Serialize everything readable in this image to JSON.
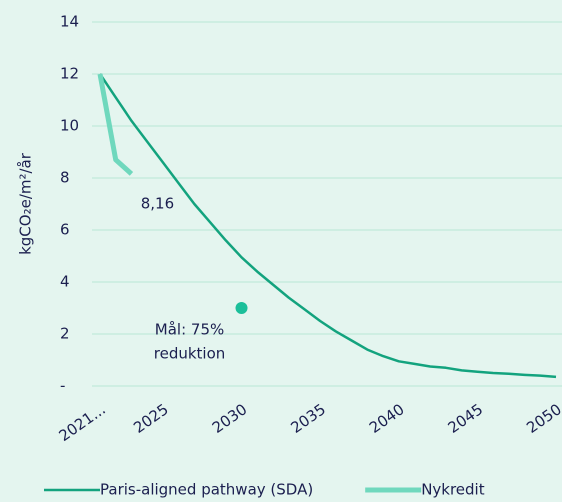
{
  "chart_data": {
    "type": "line",
    "ylabel": "kgCO₂e/m²/år",
    "x": [
      2021,
      2022,
      2023,
      2024,
      2025,
      2026,
      2027,
      2028,
      2029,
      2030,
      2031,
      2032,
      2033,
      2034,
      2035,
      2036,
      2037,
      2038,
      2039,
      2040,
      2041,
      2042,
      2043,
      2044,
      2045,
      2046,
      2047,
      2048,
      2049,
      2050
    ],
    "series": [
      {
        "name": "Paris-aligned pathway (SDA)",
        "color": "#13a37e",
        "width": 2.5,
        "values": [
          12,
          11.1,
          10.2,
          9.4,
          8.6,
          7.8,
          7.0,
          6.3,
          5.6,
          4.95,
          4.4,
          3.9,
          3.4,
          2.95,
          2.5,
          2.1,
          1.75,
          1.4,
          1.15,
          0.95,
          0.85,
          0.75,
          0.7,
          0.6,
          0.55,
          0.5,
          0.47,
          0.43,
          0.4,
          0.35
        ]
      },
      {
        "name": "Nykredit",
        "color": "#6fd8bd",
        "width": 5,
        "values": [
          12,
          8.7,
          8.16,
          null,
          null,
          null,
          null,
          null,
          null,
          null,
          null,
          null,
          null,
          null,
          null,
          null,
          null,
          null,
          null,
          null,
          null,
          null,
          null,
          null,
          null,
          null,
          null,
          null,
          null,
          null
        ],
        "value_labels": [
          null,
          null,
          "8,16",
          null,
          null,
          null,
          null,
          null,
          null,
          null,
          null,
          null,
          null,
          null,
          null,
          null,
          null,
          null,
          null,
          null,
          null,
          null,
          null,
          null,
          null,
          null,
          null,
          null,
          null,
          null
        ]
      }
    ],
    "target": {
      "x": 2030,
      "value": 3,
      "color": "#1bbf9a",
      "label": [
        "Mål: 75%",
        "reduktion"
      ]
    },
    "xlim": [
      2021,
      2050
    ],
    "xticks": [
      {
        "value": 2021,
        "label": "2021..."
      },
      2025,
      2030,
      2035,
      2040,
      2045,
      2050
    ],
    "ylim": [
      0,
      14
    ],
    "yticks": [
      {
        "value": 0,
        "label": "-"
      },
      2,
      4,
      6,
      8,
      10,
      12,
      14
    ],
    "grid": true,
    "legend": "bottom"
  }
}
